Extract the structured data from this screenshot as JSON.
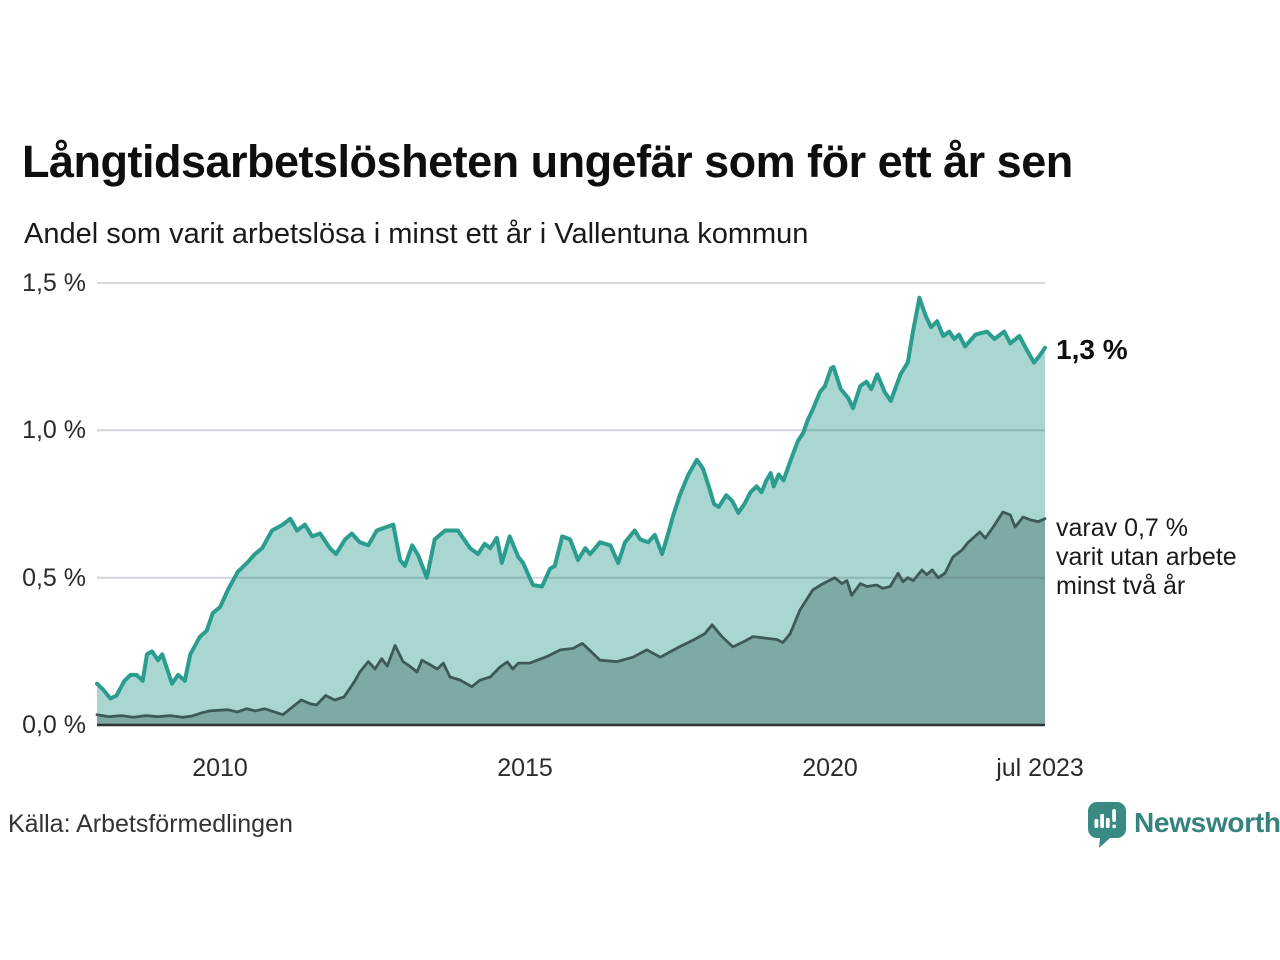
{
  "header": {
    "title": "Långtidsarbetslösheten ungefär som för ett år sen",
    "subtitle": "Andel som varit arbetslösa i minst ett år i Vallentuna kommun"
  },
  "annotations": {
    "latest_value": "1,3 %",
    "detail_line1": "varav 0,7 %",
    "detail_line2": "varit utan arbete",
    "detail_line3": "minst två år"
  },
  "footer": {
    "source": "Källa: Arbetsförmedlingen",
    "brand": "Newsworthy"
  },
  "colors": {
    "series1_line": "#2a9d8f",
    "series1_fill": "#a9d6d0",
    "series2_line": "#3c5a57",
    "series2_fill": "#7fa9a4",
    "gridline": "rgba(60,70,90,0.22)",
    "axis_line": "#2e3338",
    "brand_teal": "#3a8a83"
  },
  "chart_data": {
    "type": "area",
    "title": "Långtidsarbetslösheten ungefär som för ett år sen",
    "subtitle": "Andel som varit arbetslösa i minst ett år i Vallentuna kommun",
    "source": "Källa: Arbetsförmedlingen",
    "unit": "%",
    "grid": "horizontal",
    "legend": "none (direct labels at line ends)",
    "xlim": [
      2008.0,
      2023.55
    ],
    "ylim": [
      0,
      1.5
    ],
    "x_axis": {
      "ticks": [
        {
          "label": "2010",
          "value": 2010
        },
        {
          "label": "2015",
          "value": 2015
        },
        {
          "label": "2020",
          "value": 2020
        },
        {
          "label": "jul 2023",
          "value": 2023.5
        }
      ]
    },
    "y_axis": {
      "ticks": [
        {
          "label": "0,0 %",
          "value": 0
        },
        {
          "label": "0,5 %",
          "value": 0.5
        },
        {
          "label": "1,0 %",
          "value": 1.0
        },
        {
          "label": "1,5 %",
          "value": 1.5
        }
      ]
    },
    "series": [
      {
        "name": "Arbetslösa minst ett år",
        "key": "minst-ett-ar",
        "color": "#2a9d8f",
        "fill": "#a9d6d0",
        "stroke_width": 4,
        "end_label": "1,3 %",
        "end_value": 1.3,
        "points": [
          [
            2008.0,
            0.14
          ],
          [
            2008.1,
            0.12
          ],
          [
            2008.22,
            0.09
          ],
          [
            2008.32,
            0.1
          ],
          [
            2008.45,
            0.15
          ],
          [
            2008.55,
            0.17
          ],
          [
            2008.65,
            0.17
          ],
          [
            2008.75,
            0.15
          ],
          [
            2008.82,
            0.24
          ],
          [
            2008.9,
            0.25
          ],
          [
            2009.0,
            0.22
          ],
          [
            2009.07,
            0.24
          ],
          [
            2009.15,
            0.19
          ],
          [
            2009.23,
            0.14
          ],
          [
            2009.33,
            0.17
          ],
          [
            2009.44,
            0.15
          ],
          [
            2009.53,
            0.24
          ],
          [
            2009.69,
            0.3
          ],
          [
            2009.8,
            0.32
          ],
          [
            2009.9,
            0.38
          ],
          [
            2010.02,
            0.4
          ],
          [
            2010.15,
            0.46
          ],
          [
            2010.31,
            0.52
          ],
          [
            2010.46,
            0.55
          ],
          [
            2010.59,
            0.58
          ],
          [
            2010.71,
            0.6
          ],
          [
            2010.87,
            0.66
          ],
          [
            2011.05,
            0.68
          ],
          [
            2011.17,
            0.7
          ],
          [
            2011.28,
            0.66
          ],
          [
            2011.41,
            0.68
          ],
          [
            2011.53,
            0.64
          ],
          [
            2011.66,
            0.65
          ],
          [
            2011.82,
            0.6
          ],
          [
            2011.92,
            0.58
          ],
          [
            2012.07,
            0.63
          ],
          [
            2012.18,
            0.65
          ],
          [
            2012.31,
            0.62
          ],
          [
            2012.45,
            0.61
          ],
          [
            2012.59,
            0.66
          ],
          [
            2012.72,
            0.67
          ],
          [
            2012.86,
            0.68
          ],
          [
            2012.97,
            0.56
          ],
          [
            2013.05,
            0.54
          ],
          [
            2013.17,
            0.61
          ],
          [
            2013.27,
            0.575
          ],
          [
            2013.41,
            0.5
          ],
          [
            2013.54,
            0.63
          ],
          [
            2013.71,
            0.66
          ],
          [
            2013.92,
            0.66
          ],
          [
            2014.12,
            0.6
          ],
          [
            2014.25,
            0.58
          ],
          [
            2014.36,
            0.615
          ],
          [
            2014.45,
            0.6
          ],
          [
            2014.56,
            0.635
          ],
          [
            2014.64,
            0.55
          ],
          [
            2014.77,
            0.64
          ],
          [
            2014.91,
            0.57
          ],
          [
            2014.99,
            0.55
          ],
          [
            2015.15,
            0.475
          ],
          [
            2015.3,
            0.47
          ],
          [
            2015.43,
            0.53
          ],
          [
            2015.51,
            0.54
          ],
          [
            2015.63,
            0.64
          ],
          [
            2015.76,
            0.63
          ],
          [
            2015.89,
            0.56
          ],
          [
            2016.01,
            0.6
          ],
          [
            2016.09,
            0.58
          ],
          [
            2016.25,
            0.62
          ],
          [
            2016.42,
            0.61
          ],
          [
            2016.55,
            0.55
          ],
          [
            2016.66,
            0.62
          ],
          [
            2016.82,
            0.66
          ],
          [
            2016.91,
            0.63
          ],
          [
            2017.04,
            0.62
          ],
          [
            2017.15,
            0.645
          ],
          [
            2017.27,
            0.58
          ],
          [
            2017.37,
            0.65
          ],
          [
            2017.45,
            0.71
          ],
          [
            2017.56,
            0.78
          ],
          [
            2017.7,
            0.85
          ],
          [
            2017.84,
            0.9
          ],
          [
            2017.94,
            0.87
          ],
          [
            2018.05,
            0.8
          ],
          [
            2018.12,
            0.75
          ],
          [
            2018.2,
            0.74
          ],
          [
            2018.32,
            0.78
          ],
          [
            2018.42,
            0.76
          ],
          [
            2018.52,
            0.72
          ],
          [
            2018.62,
            0.75
          ],
          [
            2018.72,
            0.79
          ],
          [
            2018.82,
            0.81
          ],
          [
            2018.9,
            0.79
          ],
          [
            2018.98,
            0.83
          ],
          [
            2019.05,
            0.855
          ],
          [
            2019.1,
            0.81
          ],
          [
            2019.18,
            0.85
          ],
          [
            2019.26,
            0.83
          ],
          [
            2019.38,
            0.9
          ],
          [
            2019.5,
            0.965
          ],
          [
            2019.58,
            0.99
          ],
          [
            2019.66,
            1.035
          ],
          [
            2019.75,
            1.075
          ],
          [
            2019.86,
            1.13
          ],
          [
            2019.94,
            1.15
          ],
          [
            2020.04,
            1.21
          ],
          [
            2020.08,
            1.215
          ],
          [
            2020.2,
            1.14
          ],
          [
            2020.32,
            1.11
          ],
          [
            2020.4,
            1.075
          ],
          [
            2020.52,
            1.15
          ],
          [
            2020.62,
            1.165
          ],
          [
            2020.7,
            1.14
          ],
          [
            2020.8,
            1.19
          ],
          [
            2020.92,
            1.13
          ],
          [
            2021.02,
            1.1
          ],
          [
            2021.18,
            1.19
          ],
          [
            2021.3,
            1.23
          ],
          [
            2021.38,
            1.33
          ],
          [
            2021.49,
            1.45
          ],
          [
            2021.59,
            1.39
          ],
          [
            2021.68,
            1.35
          ],
          [
            2021.78,
            1.37
          ],
          [
            2021.88,
            1.32
          ],
          [
            2021.98,
            1.335
          ],
          [
            2022.06,
            1.31
          ],
          [
            2022.14,
            1.325
          ],
          [
            2022.24,
            1.285
          ],
          [
            2022.41,
            1.325
          ],
          [
            2022.6,
            1.335
          ],
          [
            2022.72,
            1.31
          ],
          [
            2022.88,
            1.335
          ],
          [
            2022.98,
            1.295
          ],
          [
            2023.13,
            1.32
          ],
          [
            2023.26,
            1.27
          ],
          [
            2023.37,
            1.23
          ],
          [
            2023.45,
            1.25
          ],
          [
            2023.55,
            1.28
          ]
        ]
      },
      {
        "name": "Varav utan arbete minst två år",
        "key": "minst-tva-ar",
        "color": "#3c5a57",
        "fill": "#7fa9a4",
        "stroke_width": 2.8,
        "end_label": "varav 0,7 % varit utan arbete minst två år",
        "end_value": 0.7,
        "points": [
          [
            2008.0,
            0.035
          ],
          [
            2008.2,
            0.028
          ],
          [
            2008.4,
            0.032
          ],
          [
            2008.6,
            0.026
          ],
          [
            2008.8,
            0.032
          ],
          [
            2009.0,
            0.028
          ],
          [
            2009.2,
            0.032
          ],
          [
            2009.4,
            0.026
          ],
          [
            2009.55,
            0.03
          ],
          [
            2009.7,
            0.04
          ],
          [
            2009.85,
            0.048
          ],
          [
            2010.0,
            0.05
          ],
          [
            2010.15,
            0.052
          ],
          [
            2010.3,
            0.044
          ],
          [
            2010.45,
            0.055
          ],
          [
            2010.6,
            0.048
          ],
          [
            2010.75,
            0.055
          ],
          [
            2010.9,
            0.045
          ],
          [
            2011.05,
            0.035
          ],
          [
            2011.2,
            0.06
          ],
          [
            2011.35,
            0.085
          ],
          [
            2011.5,
            0.072
          ],
          [
            2011.6,
            0.068
          ],
          [
            2011.75,
            0.1
          ],
          [
            2011.9,
            0.085
          ],
          [
            2012.05,
            0.095
          ],
          [
            2012.15,
            0.125
          ],
          [
            2012.23,
            0.15
          ],
          [
            2012.31,
            0.18
          ],
          [
            2012.45,
            0.215
          ],
          [
            2012.56,
            0.19
          ],
          [
            2012.67,
            0.225
          ],
          [
            2012.76,
            0.2
          ],
          [
            2012.89,
            0.27
          ],
          [
            2013.02,
            0.215
          ],
          [
            2013.13,
            0.2
          ],
          [
            2013.25,
            0.18
          ],
          [
            2013.33,
            0.22
          ],
          [
            2013.46,
            0.205
          ],
          [
            2013.58,
            0.19
          ],
          [
            2013.68,
            0.21
          ],
          [
            2013.79,
            0.163
          ],
          [
            2013.95,
            0.153
          ],
          [
            2014.15,
            0.13
          ],
          [
            2014.28,
            0.152
          ],
          [
            2014.45,
            0.163
          ],
          [
            2014.61,
            0.197
          ],
          [
            2014.73,
            0.214
          ],
          [
            2014.82,
            0.19
          ],
          [
            2014.91,
            0.21
          ],
          [
            2015.1,
            0.21
          ],
          [
            2015.38,
            0.232
          ],
          [
            2015.6,
            0.255
          ],
          [
            2015.81,
            0.26
          ],
          [
            2015.96,
            0.277
          ],
          [
            2016.1,
            0.25
          ],
          [
            2016.25,
            0.22
          ],
          [
            2016.53,
            0.215
          ],
          [
            2016.79,
            0.23
          ],
          [
            2017.02,
            0.255
          ],
          [
            2017.24,
            0.23
          ],
          [
            2017.56,
            0.266
          ],
          [
            2017.78,
            0.288
          ],
          [
            2017.97,
            0.31
          ],
          [
            2018.09,
            0.34
          ],
          [
            2018.25,
            0.3
          ],
          [
            2018.43,
            0.265
          ],
          [
            2018.63,
            0.285
          ],
          [
            2018.76,
            0.3
          ],
          [
            2018.96,
            0.295
          ],
          [
            2019.15,
            0.29
          ],
          [
            2019.25,
            0.28
          ],
          [
            2019.37,
            0.31
          ],
          [
            2019.53,
            0.39
          ],
          [
            2019.74,
            0.458
          ],
          [
            2019.91,
            0.48
          ],
          [
            2020.1,
            0.5
          ],
          [
            2020.22,
            0.48
          ],
          [
            2020.3,
            0.49
          ],
          [
            2020.38,
            0.44
          ],
          [
            2020.52,
            0.48
          ],
          [
            2020.63,
            0.47
          ],
          [
            2020.79,
            0.475
          ],
          [
            2020.89,
            0.464
          ],
          [
            2021.01,
            0.47
          ],
          [
            2021.14,
            0.515
          ],
          [
            2021.22,
            0.486
          ],
          [
            2021.3,
            0.5
          ],
          [
            2021.39,
            0.49
          ],
          [
            2021.53,
            0.526
          ],
          [
            2021.61,
            0.51
          ],
          [
            2021.7,
            0.526
          ],
          [
            2021.8,
            0.5
          ],
          [
            2021.91,
            0.515
          ],
          [
            2022.04,
            0.57
          ],
          [
            2022.19,
            0.594
          ],
          [
            2022.29,
            0.62
          ],
          [
            2022.48,
            0.655
          ],
          [
            2022.57,
            0.634
          ],
          [
            2022.7,
            0.672
          ],
          [
            2022.86,
            0.723
          ],
          [
            2022.98,
            0.713
          ],
          [
            2023.06,
            0.672
          ],
          [
            2023.19,
            0.706
          ],
          [
            2023.31,
            0.696
          ],
          [
            2023.44,
            0.69
          ],
          [
            2023.55,
            0.7
          ]
        ]
      }
    ]
  }
}
